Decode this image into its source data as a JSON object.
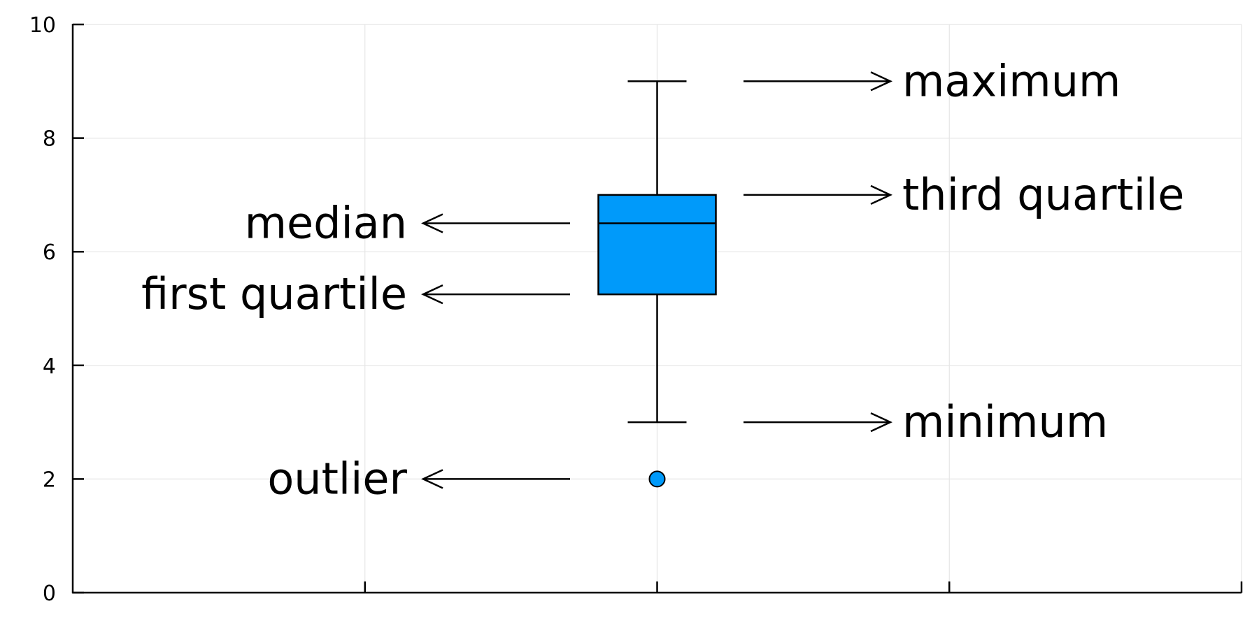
{
  "chart_data": {
    "type": "box",
    "title": "",
    "xlabel": "",
    "ylabel": "",
    "ylim": [
      0,
      10
    ],
    "xlim": [
      0,
      4
    ],
    "y_ticks": [
      0,
      2,
      4,
      6,
      8,
      10
    ],
    "x_ticks": [
      1,
      2,
      3,
      4
    ],
    "grid": true,
    "legend": "none",
    "box": {
      "x": 2,
      "minimum": 3,
      "first_quartile": 5.25,
      "median": 6.5,
      "third_quartile": 7,
      "maximum": 9,
      "outliers": [
        2
      ]
    },
    "annotations": [
      {
        "text": "maximum",
        "y": 9,
        "side": "right"
      },
      {
        "text": "third quartile",
        "y": 7,
        "side": "right"
      },
      {
        "text": "median",
        "y": 6.5,
        "side": "left"
      },
      {
        "text": "first quartile",
        "y": 5.25,
        "side": "left"
      },
      {
        "text": "minimum",
        "y": 3,
        "side": "right"
      },
      {
        "text": "outlier",
        "y": 2,
        "side": "left"
      }
    ],
    "colors": {
      "box_fill": "#009AFA",
      "outline": "#000000",
      "grid": "#E5E5E5",
      "axis": "#000000"
    }
  }
}
